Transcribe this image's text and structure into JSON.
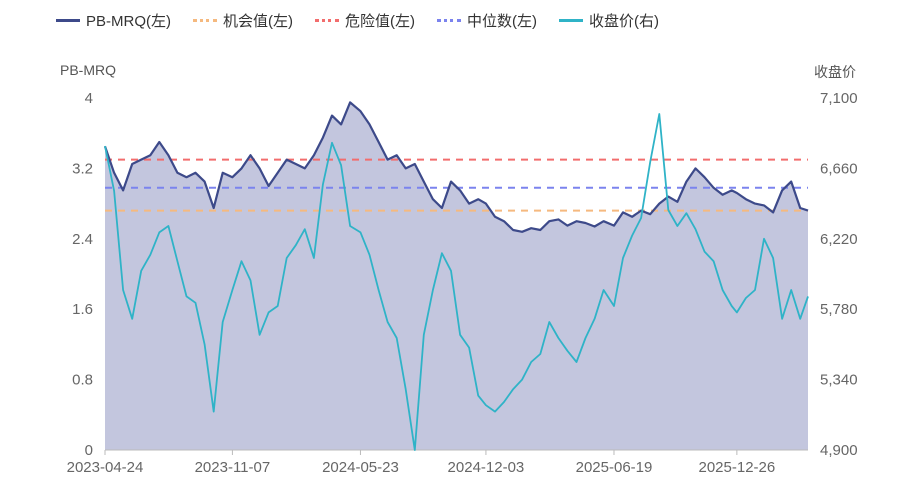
{
  "legend": {
    "pb": "PB-MRQ(左)",
    "opportunity": "机会值(左)",
    "danger": "危险值(左)",
    "median": "中位数(左)",
    "close": "收盘价(右)"
  },
  "colors": {
    "pb": "#3d4a8a",
    "pb_fill": "#b9bcd8",
    "opportunity": "#f5b97f",
    "danger": "#f26d6d",
    "median": "#7b83ee",
    "close": "#2fb3c7",
    "axis_text": "#666666",
    "axis_line": "#bbbbbb"
  },
  "chart_data": {
    "type": "line",
    "left_axis_title": "PB-MRQ",
    "right_axis_title": "收盘价",
    "x_tick_labels": [
      "2023-04-24",
      "2023-11-07",
      "2024-05-23",
      "2024-12-03",
      "2025-06-19",
      "2025-12-26"
    ],
    "x_range": [
      "2023-04-24",
      "2026-04-15"
    ],
    "left_ylim": [
      0,
      4
    ],
    "left_ticks": [
      "0",
      "0.8",
      "1.6",
      "2.4",
      "3.2",
      "4"
    ],
    "right_ylim": [
      4900,
      7100
    ],
    "right_ticks": [
      "4,900",
      "5,340",
      "5,780",
      "6,220",
      "6,660",
      "7,100"
    ],
    "reference_lines": {
      "danger": 3.3,
      "median": 2.98,
      "opportunity": 2.72
    },
    "series": [
      {
        "name": "PB-MRQ(左)",
        "axis": "left",
        "dates": [
          "2023-04-24",
          "2023-05-08",
          "2023-05-22",
          "2023-06-05",
          "2023-06-19",
          "2023-07-03",
          "2023-07-17",
          "2023-07-31",
          "2023-08-14",
          "2023-08-28",
          "2023-09-11",
          "2023-09-25",
          "2023-10-09",
          "2023-10-23",
          "2023-11-07",
          "2023-11-21",
          "2023-12-05",
          "2023-12-19",
          "2024-01-02",
          "2024-01-16",
          "2024-01-30",
          "2024-02-13",
          "2024-02-27",
          "2024-03-12",
          "2024-03-26",
          "2024-04-09",
          "2024-04-23",
          "2024-05-07",
          "2024-05-23",
          "2024-06-06",
          "2024-06-20",
          "2024-07-04",
          "2024-07-18",
          "2024-08-01",
          "2024-08-15",
          "2024-08-29",
          "2024-09-12",
          "2024-09-26",
          "2024-10-10",
          "2024-10-24",
          "2024-11-07",
          "2024-11-21",
          "2024-12-03",
          "2024-12-17",
          "2024-12-31",
          "2025-01-14",
          "2025-01-28",
          "2025-02-11",
          "2025-02-25",
          "2025-03-11",
          "2025-03-25",
          "2025-04-08",
          "2025-04-22",
          "2025-05-06",
          "2025-05-20",
          "2025-06-03",
          "2025-06-19",
          "2025-07-03",
          "2025-07-17",
          "2025-07-31",
          "2025-08-14",
          "2025-08-28",
          "2025-09-11",
          "2025-09-25",
          "2025-10-09",
          "2025-10-23",
          "2025-11-06",
          "2025-11-20",
          "2025-12-04",
          "2025-12-18",
          "2025-12-26",
          "2026-01-09",
          "2026-01-23",
          "2026-02-06",
          "2026-02-20",
          "2026-03-06",
          "2026-03-20",
          "2026-04-03",
          "2026-04-15"
        ],
        "values": [
          3.45,
          3.15,
          2.95,
          3.25,
          3.3,
          3.35,
          3.5,
          3.35,
          3.15,
          3.1,
          3.15,
          3.05,
          2.75,
          3.15,
          3.1,
          3.2,
          3.35,
          3.2,
          3.0,
          3.15,
          3.3,
          3.25,
          3.2,
          3.35,
          3.55,
          3.8,
          3.7,
          3.95,
          3.85,
          3.7,
          3.5,
          3.3,
          3.35,
          3.2,
          3.25,
          3.05,
          2.85,
          2.75,
          3.05,
          2.95,
          2.8,
          2.85,
          2.8,
          2.65,
          2.6,
          2.5,
          2.48,
          2.52,
          2.5,
          2.6,
          2.62,
          2.55,
          2.6,
          2.58,
          2.54,
          2.6,
          2.55,
          2.7,
          2.65,
          2.72,
          2.68,
          2.8,
          2.88,
          2.82,
          3.05,
          3.2,
          3.1,
          2.98,
          2.9,
          2.95,
          2.92,
          2.85,
          2.8,
          2.78,
          2.7,
          2.95,
          3.05,
          2.75,
          2.72
        ]
      },
      {
        "name": "收盘价(右)",
        "axis": "right",
        "dates": [
          "2023-04-24",
          "2023-05-08",
          "2023-05-22",
          "2023-06-05",
          "2023-06-19",
          "2023-07-03",
          "2023-07-17",
          "2023-07-31",
          "2023-08-14",
          "2023-08-28",
          "2023-09-11",
          "2023-09-25",
          "2023-10-09",
          "2023-10-23",
          "2023-11-07",
          "2023-11-21",
          "2023-12-05",
          "2023-12-19",
          "2024-01-02",
          "2024-01-16",
          "2024-01-30",
          "2024-02-13",
          "2024-02-27",
          "2024-03-12",
          "2024-03-26",
          "2024-04-09",
          "2024-04-23",
          "2024-05-07",
          "2024-05-23",
          "2024-06-06",
          "2024-06-20",
          "2024-07-04",
          "2024-07-18",
          "2024-08-01",
          "2024-08-15",
          "2024-08-29",
          "2024-09-12",
          "2024-09-26",
          "2024-10-10",
          "2024-10-24",
          "2024-11-07",
          "2024-11-21",
          "2024-12-03",
          "2024-12-17",
          "2024-12-31",
          "2025-01-14",
          "2025-01-28",
          "2025-02-11",
          "2025-02-25",
          "2025-03-11",
          "2025-03-25",
          "2025-04-08",
          "2025-04-22",
          "2025-05-06",
          "2025-05-20",
          "2025-06-03",
          "2025-06-19",
          "2025-07-03",
          "2025-07-17",
          "2025-07-31",
          "2025-08-14",
          "2025-08-28",
          "2025-09-11",
          "2025-09-25",
          "2025-10-09",
          "2025-10-23",
          "2025-11-06",
          "2025-11-20",
          "2025-12-04",
          "2025-12-18",
          "2025-12-26",
          "2026-01-09",
          "2026-01-23",
          "2026-02-06",
          "2026-02-20",
          "2026-03-06",
          "2026-03-20",
          "2026-04-03",
          "2026-04-15"
        ],
        "values": [
          6800,
          6520,
          5900,
          5720,
          6020,
          6120,
          6260,
          6300,
          6080,
          5860,
          5820,
          5560,
          5140,
          5700,
          5900,
          6080,
          5960,
          5620,
          5760,
          5800,
          6100,
          6180,
          6280,
          6100,
          6560,
          6820,
          6680,
          6300,
          6260,
          6120,
          5900,
          5700,
          5600,
          5280,
          4900,
          5620,
          5900,
          6130,
          6020,
          5620,
          5540,
          5240,
          5180,
          5140,
          5200,
          5280,
          5340,
          5450,
          5500,
          5700,
          5600,
          5520,
          5450,
          5600,
          5720,
          5900,
          5800,
          6100,
          6240,
          6350,
          6700,
          7000,
          6400,
          6300,
          6380,
          6280,
          6140,
          6080,
          5900,
          5800,
          5760,
          5850,
          5900,
          6220,
          6100,
          5720,
          5900,
          5720,
          5860
        ]
      }
    ]
  }
}
